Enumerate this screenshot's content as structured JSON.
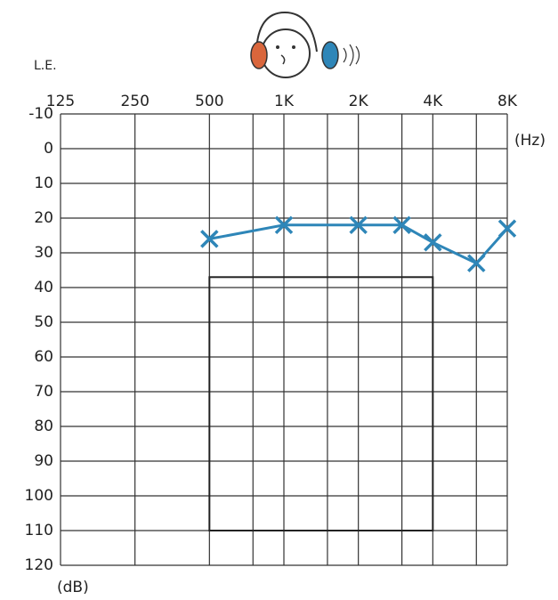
{
  "chart_data": {
    "type": "line",
    "ear_label": "L.E.",
    "x_unit": "(Hz)",
    "y_unit": "(dB)",
    "x": [
      500,
      1000,
      2000,
      3000,
      4000,
      6000,
      8000
    ],
    "series": [
      {
        "color": "#2e86b8",
        "values": [
          26,
          22,
          22,
          22,
          27,
          33,
          23
        ]
      }
    ],
    "xlim": [
      125,
      8000
    ],
    "xlog": true,
    "xticks": [
      {
        "value": 125,
        "label": "125"
      },
      {
        "value": 250,
        "label": "250"
      },
      {
        "value": 500,
        "label": "500"
      },
      {
        "value": 1000,
        "label": "1K"
      },
      {
        "value": 2000,
        "label": "2K"
      },
      {
        "value": 4000,
        "label": "4K"
      },
      {
        "value": 8000,
        "label": "8K"
      }
    ],
    "minor_xticks": [
      750,
      1500,
      3000,
      6000
    ],
    "ylim": [
      -10,
      120
    ],
    "yinverted": true,
    "yticks": [
      -10,
      0,
      10,
      20,
      30,
      40,
      50,
      60,
      70,
      80,
      90,
      100,
      110,
      120
    ],
    "region": {
      "x": [
        500,
        4000
      ],
      "y": [
        37,
        110
      ]
    },
    "grid": true
  }
}
